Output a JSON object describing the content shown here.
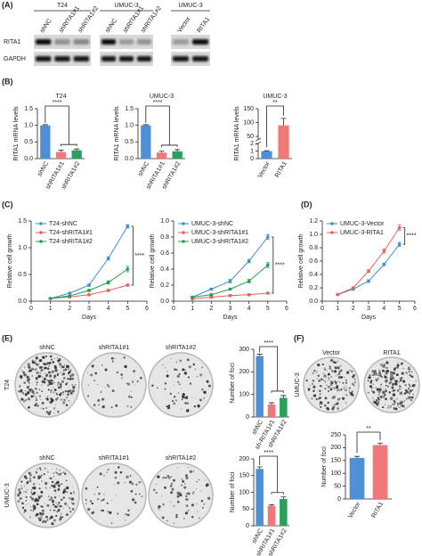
{
  "figure": {
    "panels": [
      "(A)",
      "(B)",
      "(C)",
      "(D)",
      "(E)",
      "(F)"
    ],
    "blot": {
      "groups": [
        {
          "title": "T24",
          "lanes": [
            "shNC",
            "shRITA1#1",
            "shRITA1#2"
          ]
        },
        {
          "title": "UMUC-3",
          "lanes": [
            "shNC",
            "shRITA1#1",
            "shRITA1#2"
          ]
        },
        {
          "title": "UMUC-3",
          "lanes": [
            "Vector",
            "RITA1"
          ]
        }
      ],
      "rows": [
        "RITA1",
        "GAPDH"
      ]
    },
    "colonies_e": [
      {
        "row": "T24",
        "columns": [
          "shNC",
          "shRITA1#1",
          "shRITA1#2"
        ]
      },
      {
        "row": "UMUC-3",
        "columns": [
          "shNC",
          "shRITA1#1",
          "shRITA1#2"
        ]
      }
    ],
    "colonies_f": {
      "row": "UMUC-3",
      "columns": [
        "Vector",
        "RITA1"
      ]
    }
  },
  "chart_data": [
    {
      "type": "bar",
      "title": "T24",
      "y_label": "RITA1 mRNA levels",
      "categories": [
        "shNC",
        "shRITA1#1",
        "shRITA1#2"
      ],
      "values": [
        1.0,
        0.2,
        0.25
      ],
      "errors": [
        0.02,
        0.05,
        0.04
      ],
      "colors": [
        "#4f8fd6",
        "#f07878",
        "#2aa05a"
      ],
      "ylim": [
        0,
        1.5
      ],
      "yticks": [
        {
          "value": 0,
          "label": "0.0"
        },
        {
          "value": 0.5,
          "label": "0.5"
        },
        {
          "value": 1,
          "label": "1.0"
        },
        {
          "value": 1.5,
          "label": "1.5"
        }
      ],
      "annotation": "****"
    },
    {
      "type": "bar",
      "title": "UMUC-3",
      "y_label": "RITA1 mRNA levels",
      "categories": [
        "shNC",
        "shRITA1#1",
        "shRITA1#2"
      ],
      "values": [
        1.0,
        0.18,
        0.22
      ],
      "errors": [
        0.02,
        0.04,
        0.05
      ],
      "colors": [
        "#4f8fd6",
        "#f07878",
        "#2aa05a"
      ],
      "ylim": [
        0,
        1.5
      ],
      "yticks": [
        {
          "value": 0,
          "label": "0.0"
        },
        {
          "value": 0.5,
          "label": "0.5"
        },
        {
          "value": 1,
          "label": "1.0"
        },
        {
          "value": 1.5,
          "label": "1.5"
        }
      ],
      "annotation": "****"
    },
    {
      "type": "bar",
      "title": "UMUC-3",
      "y_label": "RITA1 mRNA levels",
      "categories": [
        "Vector",
        "RITA1"
      ],
      "values": [
        1,
        90
      ],
      "errors": [
        0.05,
        25
      ],
      "colors": [
        "#4f8fd6",
        "#f07878"
      ],
      "ylim": [
        0,
        150
      ],
      "ybreak": [
        2,
        40
      ],
      "yticks": [
        0,
        1,
        2,
        50,
        100,
        150
      ],
      "annotation": "**"
    },
    {
      "type": "line",
      "x_label": "Days",
      "y_label": "Relative cell growth",
      "legend": "upper left",
      "x": [
        1,
        2,
        3,
        4,
        5
      ],
      "xlim": [
        0,
        6
      ],
      "xticks": [
        0,
        1,
        2,
        3,
        4,
        5,
        6
      ],
      "ylim": [
        0,
        1.5
      ],
      "yticks": [
        {
          "value": 0,
          "label": "0.0"
        },
        {
          "value": 0.5,
          "label": "0.5"
        },
        {
          "value": 1,
          "label": "1.0"
        },
        {
          "value": 1.5,
          "label": "1.5"
        }
      ],
      "series": [
        {
          "name": "T24-shNC",
          "color": "#3e8ed0",
          "values": [
            0.05,
            0.15,
            0.3,
            0.8,
            1.4
          ],
          "errors": [
            0.01,
            0.01,
            0.02,
            0.03,
            0.03
          ]
        },
        {
          "name": "T24-shRITA1#1",
          "color": "#e8605a",
          "values": [
            0.05,
            0.08,
            0.12,
            0.2,
            0.3
          ],
          "errors": [
            0.01,
            0.01,
            0.01,
            0.02,
            0.02
          ]
        },
        {
          "name": "T24-shRITA1#2",
          "color": "#22a050",
          "values": [
            0.05,
            0.1,
            0.2,
            0.35,
            0.6
          ],
          "errors": [
            0.01,
            0.01,
            0.02,
            0.03,
            0.05
          ]
        }
      ],
      "annotation": "****"
    },
    {
      "type": "line",
      "x_label": "Days",
      "y_label": "Relative cell growth",
      "legend": "upper left",
      "x": [
        1,
        2,
        3,
        4,
        5
      ],
      "xlim": [
        0,
        6
      ],
      "xticks": [
        0,
        1,
        2,
        3,
        4,
        5,
        6
      ],
      "ylim": [
        0,
        1
      ],
      "yticks": [
        {
          "value": 0,
          "label": "0.0"
        },
        {
          "value": 0.2,
          "label": "0.2"
        },
        {
          "value": 0.4,
          "label": "0.4"
        },
        {
          "value": 0.6,
          "label": "0.6"
        },
        {
          "value": 0.8,
          "label": "0.8"
        },
        {
          "value": 1,
          "label": "1.0"
        }
      ],
      "series": [
        {
          "name": "UMUC-3-shNC",
          "color": "#3e8ed0",
          "values": [
            0.05,
            0.15,
            0.25,
            0.5,
            0.8
          ],
          "errors": [
            0.01,
            0.01,
            0.02,
            0.02,
            0.03
          ]
        },
        {
          "name": "UMUC-3-shRITA1#1",
          "color": "#e8605a",
          "values": [
            0.03,
            0.05,
            0.07,
            0.08,
            0.1
          ],
          "errors": [
            0.01,
            0.01,
            0.01,
            0.01,
            0.01
          ]
        },
        {
          "name": "UMUC-3-shRITA1#2",
          "color": "#22a050",
          "values": [
            0.05,
            0.08,
            0.15,
            0.25,
            0.45
          ],
          "errors": [
            0.01,
            0.01,
            0.01,
            0.02,
            0.03
          ]
        }
      ],
      "annotation": "****"
    },
    {
      "type": "line",
      "x_label": "Days",
      "y_label": "Relative cell growth",
      "legend": "upper left",
      "x": [
        1,
        2,
        3,
        4,
        5
      ],
      "xlim": [
        0,
        6
      ],
      "xticks": [
        0,
        1,
        2,
        3,
        4,
        5,
        6
      ],
      "ylim": [
        0,
        1.2
      ],
      "yticks": [
        {
          "value": 0,
          "label": "0.0"
        },
        {
          "value": 0.2,
          "label": "0.2"
        },
        {
          "value": 0.4,
          "label": "0.4"
        },
        {
          "value": 0.6,
          "label": "0.6"
        },
        {
          "value": 0.8,
          "label": "0.8"
        },
        {
          "value": 1,
          "label": "1.0"
        },
        {
          "value": 1.2,
          "label": "1.2"
        }
      ],
      "series": [
        {
          "name": "UMUC-3-Vector",
          "color": "#3e8ed0",
          "values": [
            0.1,
            0.18,
            0.3,
            0.55,
            0.85
          ],
          "errors": [
            0.01,
            0.01,
            0.02,
            0.02,
            0.03
          ]
        },
        {
          "name": "UMUC-3-RITA1",
          "color": "#e8605a",
          "values": [
            0.1,
            0.2,
            0.45,
            0.75,
            1.1
          ],
          "errors": [
            0.01,
            0.01,
            0.02,
            0.03,
            0.04
          ]
        }
      ],
      "annotation": "****"
    },
    {
      "type": "bar",
      "y_label": "Number of foci",
      "categories": [
        "shNC",
        "sh-RITA1#1",
        "shRITA1#2"
      ],
      "values": [
        270,
        55,
        85
      ],
      "errors": [
        8,
        8,
        10
      ],
      "colors": [
        "#4f8fd6",
        "#f07878",
        "#2aa05a"
      ],
      "ylim": [
        0,
        300
      ],
      "yticks": [
        0,
        100,
        200,
        300
      ],
      "annotation": "****"
    },
    {
      "type": "bar",
      "y_label": "Number of foci",
      "categories": [
        "shNC",
        "shRITA1#1",
        "shRITA1#2"
      ],
      "values": [
        170,
        60,
        80
      ],
      "errors": [
        6,
        3,
        6
      ],
      "colors": [
        "#4f8fd6",
        "#f07878",
        "#2aa05a"
      ],
      "ylim": [
        0,
        200
      ],
      "yticks": [
        0,
        50,
        100,
        150,
        200
      ],
      "annotation": "****"
    },
    {
      "type": "bar",
      "y_label": "Number of foci",
      "categories": [
        "Vector",
        "RITA1"
      ],
      "values": [
        160,
        210
      ],
      "errors": [
        6,
        8
      ],
      "colors": [
        "#4f8fd6",
        "#f07878"
      ],
      "ylim": [
        0,
        250
      ],
      "yticks": [
        0,
        50,
        100,
        150,
        200,
        250
      ],
      "annotation": "**"
    }
  ]
}
